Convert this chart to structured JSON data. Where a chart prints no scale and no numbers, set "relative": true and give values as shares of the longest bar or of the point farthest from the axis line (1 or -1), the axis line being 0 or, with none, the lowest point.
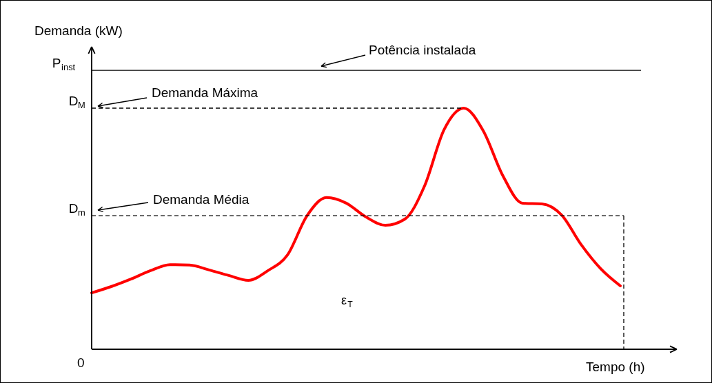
{
  "chart_data": {
    "type": "line",
    "relative": true,
    "xlabel": "Tempo (h)",
    "categories": [
      null,
      null,
      null,
      null,
      null,
      null,
      null,
      null,
      null,
      null,
      null,
      null,
      null,
      null,
      null,
      null,
      null,
      null,
      null,
      null,
      null,
      null,
      null,
      null,
      null,
      null,
      null,
      null
    ],
    "series": [
      {
        "color": "#ff0000",
        "values": [
          0.234,
          0.26,
          0.291,
          0.326,
          0.351,
          0.349,
          0.329,
          0.306,
          0.286,
          0.326,
          0.391,
          0.554,
          0.629,
          0.606,
          0.549,
          0.514,
          0.54,
          0.677,
          0.911,
          1,
          0.906,
          0.72,
          0.606,
          0.603,
          0.557,
          0.434,
          0.334,
          0.263
        ]
      }
    ],
    "ref_lines": [
      {
        "axis": "y",
        "value": 1.157,
        "label": "P$_{inst}$",
        "color": "#000000",
        "line_style": "solid"
      },
      {
        "axis": "y",
        "value": 1,
        "label": "D$_{M}$",
        "color": "#000000",
        "line_style": "dashed"
      },
      {
        "axis": "y",
        "value": 0.554,
        "label": "D$_{m}$",
        "color": "#000000",
        "line_style": "dashed"
      }
    ],
    "annotations": [
      "0",
      "Potência instalada",
      "Demanda Máxima",
      "Demanda Média",
      "ε$_{T}$",
      "Demanda (kW)"
    ],
    "line_style": "solid"
  }
}
